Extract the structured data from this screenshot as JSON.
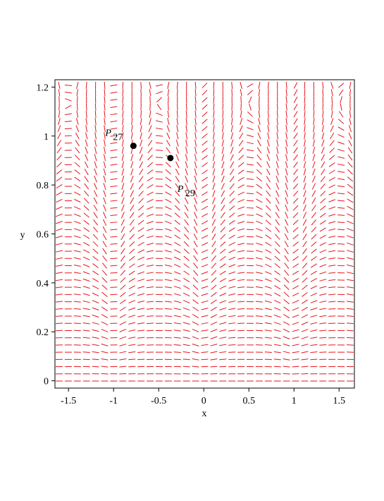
{
  "chart_data": {
    "type": "field",
    "x_label": "x",
    "y_label": "y",
    "xlim": [
      -1.65,
      1.67
    ],
    "ylim": [
      -0.03,
      1.23
    ],
    "xticks": [
      -1.5,
      -1,
      -0.5,
      0,
      0.5,
      1,
      1.5
    ],
    "yticks": [
      0,
      0.2,
      0.4,
      0.6,
      0.8,
      1,
      1.2
    ],
    "field_color": "#e8141b",
    "points": {
      "color": "#000000",
      "labels": [
        {
          "name": "P",
          "sub": "27"
        },
        {
          "name": "P",
          "sub": "29"
        }
      ],
      "x": [
        -0.78,
        -0.37
      ],
      "y": [
        0.96,
        0.91
      ]
    }
  }
}
